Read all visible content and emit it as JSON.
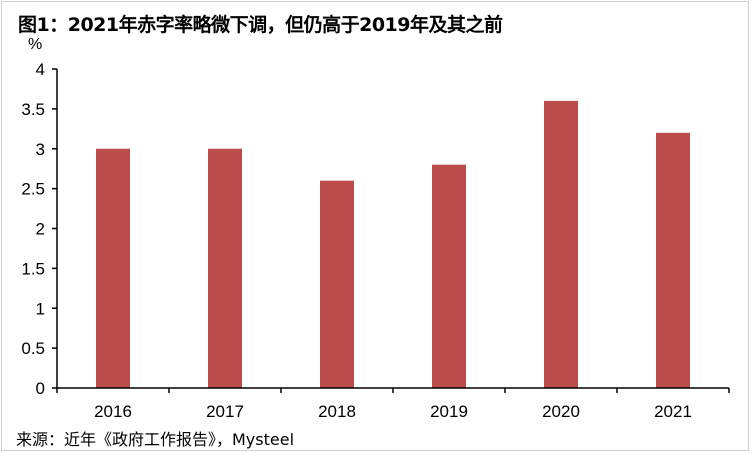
{
  "chart_data": {
    "type": "bar",
    "title": "图1：2021年赤字率略微下调，但仍高于2019年及其之前",
    "ylabel": "%",
    "categories": [
      "2016",
      "2017",
      "2018",
      "2019",
      "2020",
      "2021"
    ],
    "values": [
      3.0,
      3.0,
      2.6,
      2.8,
      3.6,
      3.2
    ],
    "ylim": [
      0,
      4
    ],
    "yticks": [
      "0",
      "0.5",
      "1",
      "1.5",
      "2",
      "2.5",
      "3",
      "3.5",
      "4"
    ],
    "grid": false,
    "bar_color": "#bc4b4c",
    "source": "来源：近年《政府工作报告》，Mysteel"
  }
}
